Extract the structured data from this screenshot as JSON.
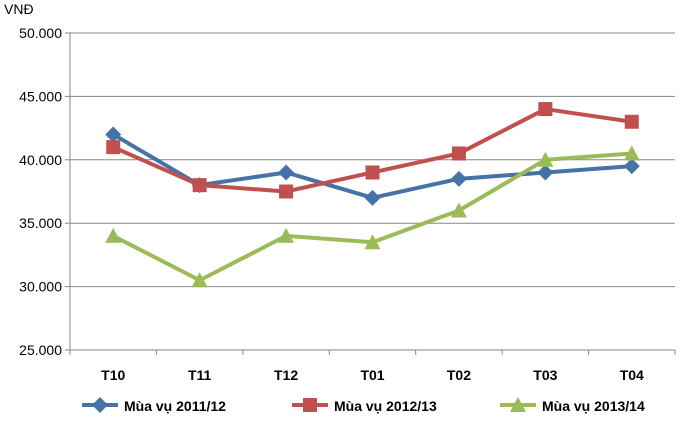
{
  "chart_data": {
    "type": "line",
    "unit_label": "VNĐ",
    "categories": [
      "T10",
      "T11",
      "T12",
      "T01",
      "T02",
      "T03",
      "T04"
    ],
    "ylim": [
      25000,
      50000
    ],
    "yticks": [
      "25.000",
      "30.000",
      "35.000",
      "40.000",
      "45.000",
      "50.000"
    ],
    "grid": true,
    "legend_position": "bottom",
    "series": [
      {
        "name": "Mùa vụ 2011/12",
        "color": "#4572A7",
        "marker": "diamond",
        "values": [
          42000,
          38000,
          39000,
          37000,
          38500,
          39000,
          39500
        ]
      },
      {
        "name": "Mùa vụ 2012/13",
        "color": "#C0504D",
        "marker": "square",
        "values": [
          41000,
          38000,
          37500,
          39000,
          40500,
          44000,
          43000
        ]
      },
      {
        "name": "Mùa vụ 2013/14",
        "color": "#9BBB59",
        "marker": "triangle",
        "values": [
          34000,
          30500,
          34000,
          33500,
          36000,
          40000,
          40500
        ]
      }
    ]
  }
}
